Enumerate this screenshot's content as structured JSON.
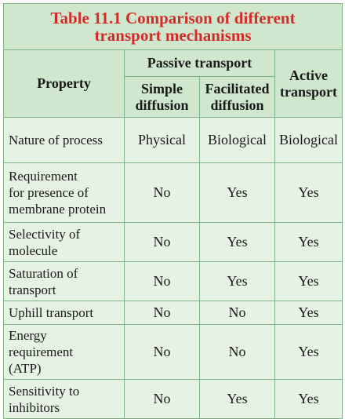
{
  "table": {
    "caption_line1": "Table 11.1  Comparison of different",
    "caption_line2": "transport mechanisms",
    "header": {
      "property": "Property",
      "passive": "Passive transport",
      "simple": [
        "Simple",
        "diffusion"
      ],
      "facilitated": [
        "Facilitated",
        "diffusion"
      ],
      "active": [
        "Active",
        "transport"
      ]
    },
    "rows": [
      {
        "property": [
          "Nature of process"
        ],
        "simple": "Physical",
        "facilitated": "Biological",
        "active": "Biological"
      },
      {
        "property": [
          "Requirement",
          "for presence of",
          "membrane protein"
        ],
        "simple": "No",
        "facilitated": "Yes",
        "active": "Yes"
      },
      {
        "property": [
          "Selectivity of",
          "molecule"
        ],
        "simple": "No",
        "facilitated": "Yes",
        "active": "Yes"
      },
      {
        "property": [
          "Saturation of",
          "transport"
        ],
        "simple": "No",
        "facilitated": "Yes",
        "active": "Yes"
      },
      {
        "property": [
          "Uphill transport"
        ],
        "simple": "No",
        "facilitated": "No",
        "active": "Yes"
      },
      {
        "property": [
          "Energy",
          "requirement",
          "(ATP)"
        ],
        "simple": "No",
        "facilitated": "No",
        "active": "Yes"
      },
      {
        "property": [
          "Sensitivity to",
          "inhibitors"
        ],
        "simple": "No",
        "facilitated": "Yes",
        "active": "Yes"
      }
    ]
  }
}
